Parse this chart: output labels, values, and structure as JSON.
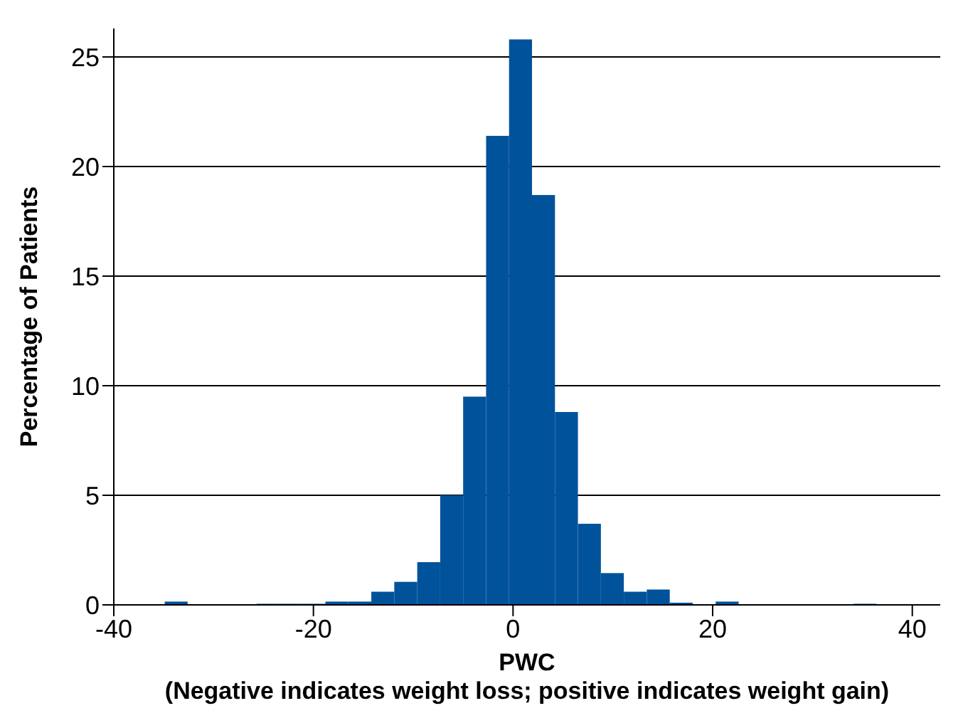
{
  "chart_data": {
    "type": "histogram",
    "xlabel": "PWC\n(Negative indicates weight loss; positive indicates weight gain)",
    "ylabel": "Percentage of Patients",
    "bins": [
      -34.9,
      -32.6,
      -30.3,
      -28.0,
      -25.7,
      -23.4,
      -21.1,
      -18.8,
      -16.5,
      -14.2,
      -11.9,
      -9.6,
      -7.3,
      -5.0,
      -2.7,
      -0.4,
      1.9,
      4.2,
      6.5,
      8.8,
      11.1,
      13.4,
      15.7,
      18.0,
      20.3,
      22.6,
      24.9,
      27.2,
      29.5,
      31.8,
      34.1,
      36.4
    ],
    "values": [
      0.15,
      0,
      0,
      0,
      0.05,
      0.05,
      0.05,
      0.15,
      0.15,
      0.6,
      1.05,
      1.95,
      5.0,
      9.5,
      21.4,
      25.8,
      18.7,
      8.8,
      3.7,
      1.45,
      0.6,
      0.7,
      0.1,
      0,
      0.15,
      0,
      0,
      0,
      0,
      0,
      0.05
    ],
    "color": "#00529b",
    "xlim": [
      -40,
      42.8
    ],
    "xticks": [
      -40,
      -20,
      0,
      20,
      40
    ],
    "ylim": [
      0,
      26.3
    ],
    "yticks": [
      0,
      5,
      10,
      15,
      20,
      25
    ],
    "grid": "y"
  }
}
